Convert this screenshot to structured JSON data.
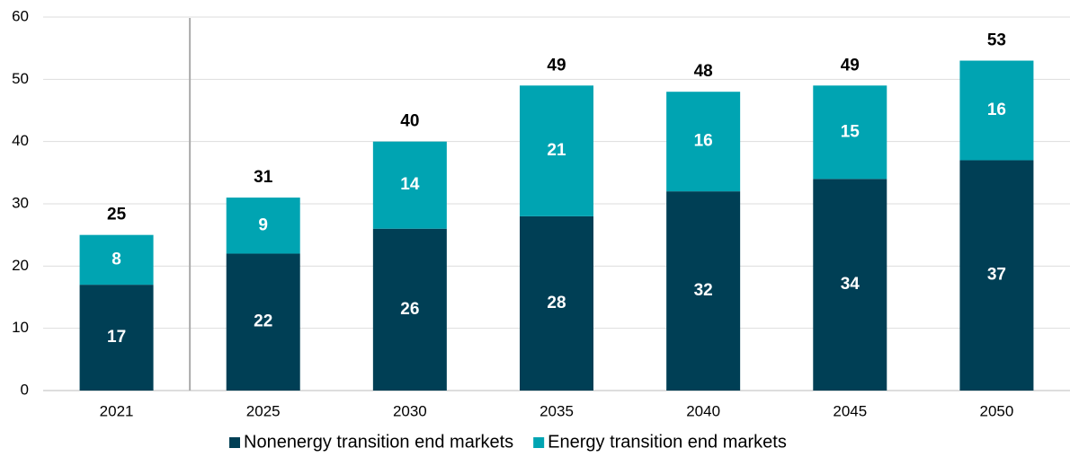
{
  "chart_data": {
    "type": "stacked_bar",
    "categories": [
      "2021",
      "2025",
      "2030",
      "2035",
      "2040",
      "2045",
      "2050"
    ],
    "series": [
      {
        "name": "Nonenergy transition end markets",
        "color": "#003f55",
        "values": [
          17,
          22,
          26,
          28,
          32,
          34,
          37
        ]
      },
      {
        "name": "Energy transition end markets",
        "color": "#00a4b2",
        "values": [
          8,
          9,
          14,
          21,
          16,
          15,
          16
        ]
      }
    ],
    "totals": [
      25,
      31,
      40,
      49,
      48,
      49,
      53
    ],
    "ylim": [
      0,
      60
    ],
    "yticks": [
      0,
      10,
      20,
      30,
      40,
      50,
      60
    ],
    "grid": true,
    "legend": "bottom"
  }
}
